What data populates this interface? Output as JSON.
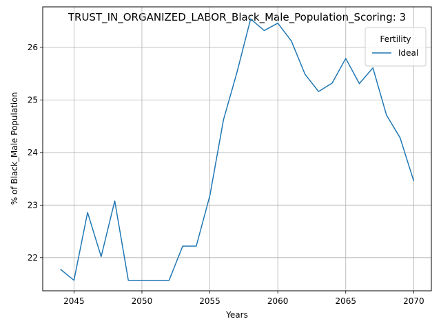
{
  "chart_data": {
    "type": "line",
    "title": "TRUST_IN_ORGANIZED_LABOR_Black_Male_Population_Scoring: 3",
    "xlabel": "Years",
    "ylabel": "% of Black_Male Population",
    "xlim": [
      2042.7,
      2071.3
    ],
    "ylim": [
      21.37,
      26.77
    ],
    "xticks": [
      2045,
      2050,
      2055,
      2060,
      2065,
      2070
    ],
    "yticks": [
      22,
      23,
      24,
      25,
      26
    ],
    "grid": true,
    "legend": {
      "title": "Fertility",
      "placement": "top-right"
    },
    "x": [
      2044,
      2045,
      2046,
      2047,
      2048,
      2049,
      2050,
      2051,
      2052,
      2053,
      2054,
      2055,
      2056,
      2057,
      2058,
      2059,
      2060,
      2061,
      2062,
      2063,
      2064,
      2065,
      2066,
      2067,
      2068,
      2069,
      2070
    ],
    "series": [
      {
        "name": "Ideal",
        "color": "#1f77b4",
        "values": [
          21.78,
          21.57,
          22.86,
          22.02,
          23.08,
          21.57,
          21.57,
          21.57,
          21.57,
          22.22,
          22.22,
          23.18,
          24.62,
          25.53,
          26.54,
          26.32,
          26.46,
          26.12,
          25.49,
          25.16,
          25.32,
          25.79,
          25.31,
          25.61,
          24.71,
          24.28,
          23.46
        ]
      }
    ]
  }
}
